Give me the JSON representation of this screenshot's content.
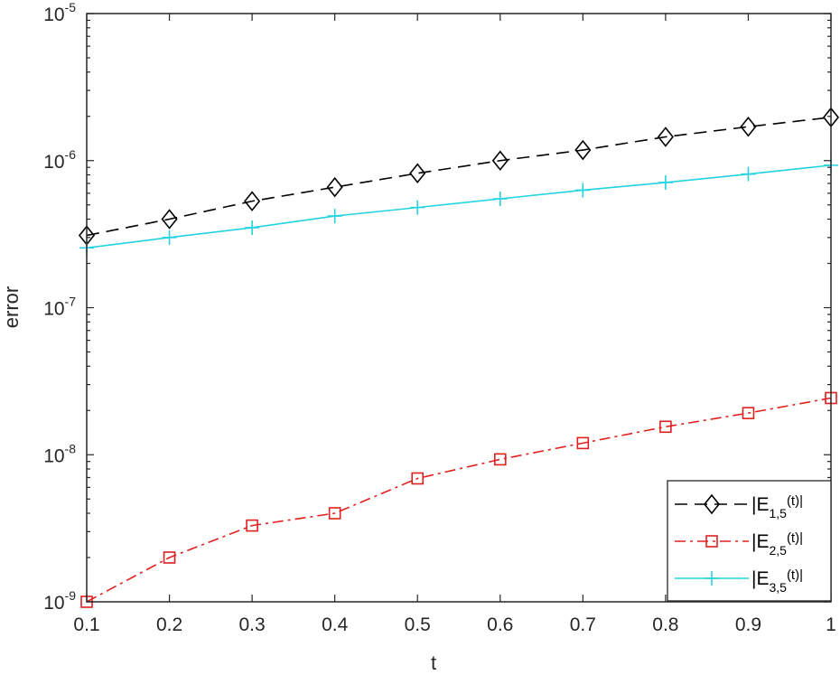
{
  "chart_data": {
    "type": "line",
    "title": "",
    "xlabel": "t",
    "ylabel": "error",
    "yscale": "log",
    "xlim": [
      0.1,
      1
    ],
    "ylim": [
      1e-09,
      1e-05
    ],
    "x": [
      0.1,
      0.2,
      0.3,
      0.4,
      0.5,
      0.6,
      0.7,
      0.8,
      0.9,
      1.0
    ],
    "x_ticks": [
      "0.1",
      "0.2",
      "0.3",
      "0.4",
      "0.5",
      "0.6",
      "0.7",
      "0.8",
      "0.9",
      "1"
    ],
    "y_ticks": [
      {
        "base": "10",
        "exp": "-5",
        "value": 1e-05
      },
      {
        "base": "10",
        "exp": "-6",
        "value": 1e-06
      },
      {
        "base": "10",
        "exp": "-7",
        "value": 1e-07
      },
      {
        "base": "10",
        "exp": "-8",
        "value": 1e-08
      },
      {
        "base": "10",
        "exp": "-9",
        "value": 1e-09
      }
    ],
    "grid": false,
    "legend_position": "lower right",
    "series": [
      {
        "name": "|E_{1,5}(t)|",
        "label_main": "|E",
        "label_sub": "1,5",
        "label_tail": "(t)|",
        "color": "#000000",
        "line_style": "dashed",
        "marker": "diamond",
        "values": [
          3.1e-07,
          4e-07,
          5.3e-07,
          6.6e-07,
          8.2e-07,
          1e-06,
          1.18e-06,
          1.45e-06,
          1.7e-06,
          1.97e-06
        ]
      },
      {
        "name": "|E_{2,5}(t)|",
        "label_main": "|E",
        "label_sub": "2,5",
        "label_tail": "(t)|",
        "color": "#e0201f",
        "line_style": "dashdot",
        "marker": "square",
        "values": [
          1e-09,
          2e-09,
          3.3e-09,
          4e-09,
          6.9e-09,
          9.3e-09,
          1.2e-08,
          1.55e-08,
          1.92e-08,
          2.43e-08
        ]
      },
      {
        "name": "|E_{3,5}(t)|",
        "label_main": "|E",
        "label_sub": "3,5",
        "label_tail": "(t)|",
        "color": "#22d3e0",
        "line_style": "solid",
        "marker": "plus",
        "values": [
          2.55e-07,
          3e-07,
          3.5e-07,
          4.2e-07,
          4.8e-07,
          5.5e-07,
          6.3e-07,
          7.1e-07,
          8.1e-07,
          9.3e-07
        ]
      }
    ]
  }
}
